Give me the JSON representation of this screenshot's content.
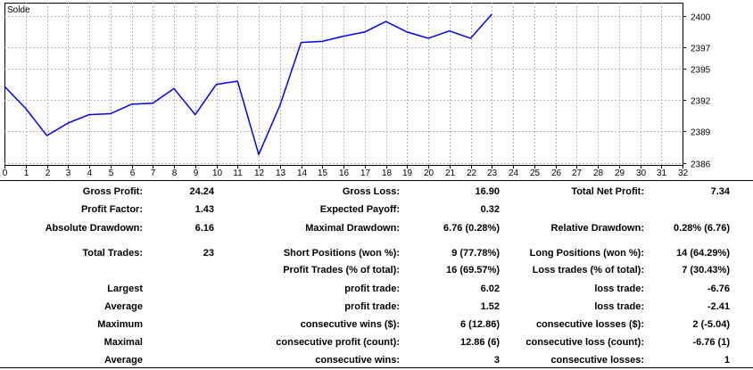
{
  "chart_data": {
    "type": "line",
    "title": "Solde",
    "x_ticks": [
      0,
      1,
      2,
      3,
      4,
      5,
      6,
      7,
      8,
      9,
      10,
      11,
      12,
      13,
      14,
      15,
      16,
      17,
      18,
      19,
      20,
      21,
      22,
      23,
      24,
      25,
      26,
      27,
      28,
      29,
      30,
      31,
      32
    ],
    "xlim": [
      0,
      32
    ],
    "y_ticks": [
      2386,
      2389,
      2392,
      2395,
      2397,
      2400
    ],
    "ylim": [
      2385.8,
      2401.3
    ],
    "grid": true,
    "series": [
      {
        "color": "#0000ff",
        "x": [
          0,
          1,
          2,
          3,
          4,
          5,
          6,
          7,
          8,
          9,
          10,
          11,
          12,
          13,
          14,
          15,
          16,
          17,
          18,
          19,
          20,
          21,
          22,
          23
        ],
        "y": [
          2393.3,
          2391.2,
          2388.6,
          2389.8,
          2390.6,
          2390.7,
          2391.6,
          2391.7,
          2393.1,
          2390.6,
          2393.5,
          2393.8,
          2386.8,
          2391.5,
          2397.5,
          2397.6,
          2398.1,
          2398.5,
          2399.5,
          2398.5,
          2397.9,
          2398.6,
          2397.9,
          2400.2
        ]
      }
    ]
  },
  "report": {
    "rows": [
      {
        "l1": "Gross Profit:",
        "v1": "24.24",
        "l2": "Gross Loss:",
        "v2": "16.90",
        "l3": "Total Net Profit:",
        "v3": "7.34"
      },
      {
        "l1": "Profit Factor:",
        "v1": "1.43",
        "l2": "Expected Payoff:",
        "v2": "0.32",
        "l3": "",
        "v3": ""
      },
      {
        "l1": "Absolute Drawdown:",
        "v1": "6.16",
        "l2": "Maximal Drawdown:",
        "v2": "6.76 (0.28%)",
        "l3": "Relative Drawdown:",
        "v3": "0.28% (6.76)"
      },
      {
        "l1": "Total Trades:",
        "v1": "23",
        "l2": "Short Positions (won %):",
        "v2": "9 (77.78%)",
        "l3": "Long Positions (won %):",
        "v3": "14 (64.29%)"
      },
      {
        "l1": "",
        "v1": "",
        "l2": "Profit Trades (% of total):",
        "v2": "16 (69.57%)",
        "l3": "Loss trades (% of total):",
        "v3": "7 (30.43%)"
      },
      {
        "l1": "Largest",
        "v1": "",
        "l2": "profit trade:",
        "v2": "6.02",
        "l3": "loss trade:",
        "v3": "-6.76"
      },
      {
        "l1": "Average",
        "v1": "",
        "l2": "profit trade:",
        "v2": "1.52",
        "l3": "loss trade:",
        "v3": "-2.41"
      },
      {
        "l1": "Maximum",
        "v1": "",
        "l2": "consecutive wins ($):",
        "v2": "6 (12.86)",
        "l3": "consecutive losses ($):",
        "v3": "2 (-5.04)"
      },
      {
        "l1": "Maximal",
        "v1": "",
        "l2": "consecutive profit (count):",
        "v2": "12.86 (6)",
        "l3": "consecutive loss (count):",
        "v3": "-6.76 (1)"
      },
      {
        "l1": "Average",
        "v1": "",
        "l2": "consecutive wins:",
        "v2": "3",
        "l3": "consecutive losses:",
        "v3": "1"
      }
    ]
  }
}
